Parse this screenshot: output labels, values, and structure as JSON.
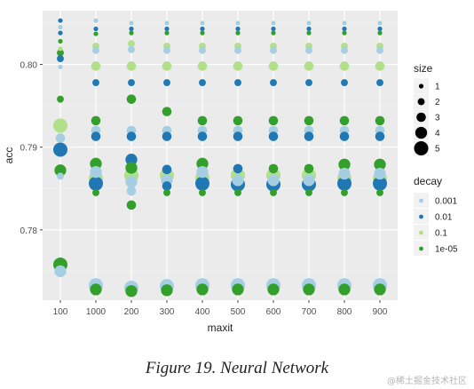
{
  "chart_data": {
    "type": "scatter",
    "xlabel": "maxit",
    "ylabel": "acc",
    "categories": [
      "100",
      "1000",
      "200",
      "300",
      "400",
      "500",
      "600",
      "700",
      "800",
      "900"
    ],
    "ylim": [
      0.7715,
      0.8065
    ],
    "yticks": [
      0.78,
      0.79,
      0.8
    ],
    "ytick_labels": [
      "0.78",
      "0.79",
      "0.80"
    ],
    "grid": true,
    "legend_size": {
      "title": "size",
      "entries": [
        {
          "label": "1",
          "value": 1
        },
        {
          "label": "2",
          "value": 2
        },
        {
          "label": "3",
          "value": 3
        },
        {
          "label": "4",
          "value": 4
        },
        {
          "label": "5",
          "value": 5
        }
      ]
    },
    "legend_color": {
      "title": "decay",
      "entries": [
        {
          "label": "0.001",
          "color": "#a6cee3"
        },
        {
          "label": "0.01",
          "color": "#1f78b4"
        },
        {
          "label": "0.1",
          "color": "#b2df8a"
        },
        {
          "label": "1e-05",
          "color": "#33a02c"
        }
      ]
    },
    "points": [
      {
        "x": "100",
        "y": 0.8053,
        "decay": "0.01",
        "size": 1
      },
      {
        "x": "100",
        "y": 0.8045,
        "decay": "0.001",
        "size": 1
      },
      {
        "x": "100",
        "y": 0.8038,
        "decay": "0.01",
        "size": 1
      },
      {
        "x": "100",
        "y": 0.8028,
        "decay": "1e-05",
        "size": 1
      },
      {
        "x": "100",
        "y": 0.8019,
        "decay": "0.1",
        "size": 1
      },
      {
        "x": "100",
        "y": 0.8014,
        "decay": "1e-05",
        "size": 2
      },
      {
        "x": "100",
        "y": 0.8007,
        "decay": "0.01",
        "size": 2
      },
      {
        "x": "100",
        "y": 0.7997,
        "decay": "0.001",
        "size": 1
      },
      {
        "x": "100",
        "y": 0.7958,
        "decay": "1e-05",
        "size": 2
      },
      {
        "x": "100",
        "y": 0.7926,
        "decay": "0.1",
        "size": 5
      },
      {
        "x": "100",
        "y": 0.7911,
        "decay": "0.001",
        "size": 3
      },
      {
        "x": "100",
        "y": 0.7897,
        "decay": "0.01",
        "size": 5
      },
      {
        "x": "100",
        "y": 0.7872,
        "decay": "1e-05",
        "size": 4
      },
      {
        "x": "100",
        "y": 0.7865,
        "decay": "0.001",
        "size": 2
      },
      {
        "x": "100",
        "y": 0.7758,
        "decay": "1e-05",
        "size": 5
      },
      {
        "x": "100",
        "y": 0.775,
        "decay": "0.001",
        "size": 4
      },
      {
        "x": "1000",
        "y": 0.8053,
        "decay": "0.001",
        "size": 1
      },
      {
        "x": "1000",
        "y": 0.8043,
        "decay": "0.01",
        "size": 1
      },
      {
        "x": "1000",
        "y": 0.8037,
        "decay": "1e-05",
        "size": 1
      },
      {
        "x": "1000",
        "y": 0.8022,
        "decay": "0.1",
        "size": 2
      },
      {
        "x": "1000",
        "y": 0.8017,
        "decay": "0.001",
        "size": 2
      },
      {
        "x": "1000",
        "y": 0.7998,
        "decay": "0.1",
        "size": 3
      },
      {
        "x": "1000",
        "y": 0.7978,
        "decay": "0.01",
        "size": 2
      },
      {
        "x": "1000",
        "y": 0.7932,
        "decay": "1e-05",
        "size": 3
      },
      {
        "x": "1000",
        "y": 0.792,
        "decay": "0.001",
        "size": 3
      },
      {
        "x": "1000",
        "y": 0.7913,
        "decay": "0.01",
        "size": 3
      },
      {
        "x": "1000",
        "y": 0.788,
        "decay": "1e-05",
        "size": 4
      },
      {
        "x": "1000",
        "y": 0.787,
        "decay": "0.001",
        "size": 4
      },
      {
        "x": "1000",
        "y": 0.7862,
        "decay": "0.1",
        "size": 5
      },
      {
        "x": "1000",
        "y": 0.7856,
        "decay": "0.01",
        "size": 5
      },
      {
        "x": "1000",
        "y": 0.7845,
        "decay": "1e-05",
        "size": 2
      },
      {
        "x": "1000",
        "y": 0.7733,
        "decay": "0.001",
        "size": 5
      },
      {
        "x": "1000",
        "y": 0.7728,
        "decay": "1e-05",
        "size": 4
      },
      {
        "x": "200",
        "y": 0.805,
        "decay": "0.001",
        "size": 1
      },
      {
        "x": "200",
        "y": 0.8043,
        "decay": "0.01",
        "size": 1
      },
      {
        "x": "200",
        "y": 0.8038,
        "decay": "1e-05",
        "size": 1
      },
      {
        "x": "200",
        "y": 0.8025,
        "decay": "0.1",
        "size": 2
      },
      {
        "x": "200",
        "y": 0.8018,
        "decay": "0.001",
        "size": 2
      },
      {
        "x": "200",
        "y": 0.7998,
        "decay": "0.1",
        "size": 3
      },
      {
        "x": "200",
        "y": 0.7978,
        "decay": "0.01",
        "size": 2
      },
      {
        "x": "200",
        "y": 0.7958,
        "decay": "1e-05",
        "size": 3
      },
      {
        "x": "200",
        "y": 0.792,
        "decay": "0.001",
        "size": 3
      },
      {
        "x": "200",
        "y": 0.7913,
        "decay": "0.01",
        "size": 3
      },
      {
        "x": "200",
        "y": 0.7885,
        "decay": "0.01",
        "size": 4
      },
      {
        "x": "200",
        "y": 0.7875,
        "decay": "1e-05",
        "size": 4
      },
      {
        "x": "200",
        "y": 0.7866,
        "decay": "0.1",
        "size": 5
      },
      {
        "x": "200",
        "y": 0.7858,
        "decay": "0.001",
        "size": 4
      },
      {
        "x": "200",
        "y": 0.7847,
        "decay": "0.001",
        "size": 3
      },
      {
        "x": "200",
        "y": 0.783,
        "decay": "1e-05",
        "size": 3
      },
      {
        "x": "200",
        "y": 0.773,
        "decay": "0.001",
        "size": 5
      },
      {
        "x": "200",
        "y": 0.7726,
        "decay": "1e-05",
        "size": 4
      },
      {
        "x": "300",
        "y": 0.805,
        "decay": "0.001",
        "size": 1
      },
      {
        "x": "300",
        "y": 0.8043,
        "decay": "0.01",
        "size": 1
      },
      {
        "x": "300",
        "y": 0.8038,
        "decay": "1e-05",
        "size": 1
      },
      {
        "x": "300",
        "y": 0.8022,
        "decay": "0.1",
        "size": 2
      },
      {
        "x": "300",
        "y": 0.8017,
        "decay": "0.001",
        "size": 2
      },
      {
        "x": "300",
        "y": 0.7998,
        "decay": "0.1",
        "size": 3
      },
      {
        "x": "300",
        "y": 0.7978,
        "decay": "0.01",
        "size": 2
      },
      {
        "x": "300",
        "y": 0.7943,
        "decay": "1e-05",
        "size": 3
      },
      {
        "x": "300",
        "y": 0.792,
        "decay": "0.001",
        "size": 3
      },
      {
        "x": "300",
        "y": 0.7913,
        "decay": "0.01",
        "size": 3
      },
      {
        "x": "300",
        "y": 0.7873,
        "decay": "0.01",
        "size": 3
      },
      {
        "x": "300",
        "y": 0.7866,
        "decay": "0.1",
        "size": 5
      },
      {
        "x": "300",
        "y": 0.786,
        "decay": "0.001",
        "size": 4
      },
      {
        "x": "300",
        "y": 0.7853,
        "decay": "0.01",
        "size": 3
      },
      {
        "x": "300",
        "y": 0.7845,
        "decay": "1e-05",
        "size": 2
      },
      {
        "x": "300",
        "y": 0.7732,
        "decay": "0.001",
        "size": 5
      },
      {
        "x": "300",
        "y": 0.7727,
        "decay": "1e-05",
        "size": 4
      },
      {
        "x": "400",
        "y": 0.805,
        "decay": "0.001",
        "size": 1
      },
      {
        "x": "400",
        "y": 0.8043,
        "decay": "0.01",
        "size": 1
      },
      {
        "x": "400",
        "y": 0.8038,
        "decay": "1e-05",
        "size": 1
      },
      {
        "x": "400",
        "y": 0.8022,
        "decay": "0.1",
        "size": 2
      },
      {
        "x": "400",
        "y": 0.8017,
        "decay": "0.001",
        "size": 2
      },
      {
        "x": "400",
        "y": 0.7998,
        "decay": "0.1",
        "size": 3
      },
      {
        "x": "400",
        "y": 0.7978,
        "decay": "0.01",
        "size": 2
      },
      {
        "x": "400",
        "y": 0.7932,
        "decay": "1e-05",
        "size": 3
      },
      {
        "x": "400",
        "y": 0.792,
        "decay": "0.001",
        "size": 3
      },
      {
        "x": "400",
        "y": 0.7913,
        "decay": "0.01",
        "size": 3
      },
      {
        "x": "400",
        "y": 0.788,
        "decay": "1e-05",
        "size": 4
      },
      {
        "x": "400",
        "y": 0.787,
        "decay": "0.001",
        "size": 4
      },
      {
        "x": "400",
        "y": 0.7863,
        "decay": "0.1",
        "size": 5
      },
      {
        "x": "400",
        "y": 0.7856,
        "decay": "0.01",
        "size": 5
      },
      {
        "x": "400",
        "y": 0.7845,
        "decay": "1e-05",
        "size": 2
      },
      {
        "x": "400",
        "y": 0.7733,
        "decay": "0.001",
        "size": 5
      },
      {
        "x": "400",
        "y": 0.7728,
        "decay": "1e-05",
        "size": 4
      },
      {
        "x": "500",
        "y": 0.805,
        "decay": "0.001",
        "size": 1
      },
      {
        "x": "500",
        "y": 0.8043,
        "decay": "0.01",
        "size": 1
      },
      {
        "x": "500",
        "y": 0.8038,
        "decay": "1e-05",
        "size": 1
      },
      {
        "x": "500",
        "y": 0.8022,
        "decay": "0.1",
        "size": 2
      },
      {
        "x": "500",
        "y": 0.8017,
        "decay": "0.001",
        "size": 2
      },
      {
        "x": "500",
        "y": 0.7998,
        "decay": "0.1",
        "size": 3
      },
      {
        "x": "500",
        "y": 0.7978,
        "decay": "0.01",
        "size": 2
      },
      {
        "x": "500",
        "y": 0.7932,
        "decay": "1e-05",
        "size": 3
      },
      {
        "x": "500",
        "y": 0.792,
        "decay": "0.001",
        "size": 3
      },
      {
        "x": "500",
        "y": 0.7913,
        "decay": "0.01",
        "size": 3
      },
      {
        "x": "500",
        "y": 0.7874,
        "decay": "0.01",
        "size": 3
      },
      {
        "x": "500",
        "y": 0.7866,
        "decay": "0.1",
        "size": 5
      },
      {
        "x": "500",
        "y": 0.786,
        "decay": "0.001",
        "size": 4
      },
      {
        "x": "500",
        "y": 0.7855,
        "decay": "0.01",
        "size": 5
      },
      {
        "x": "500",
        "y": 0.7845,
        "decay": "1e-05",
        "size": 2
      },
      {
        "x": "500",
        "y": 0.7733,
        "decay": "0.001",
        "size": 5
      },
      {
        "x": "500",
        "y": 0.7728,
        "decay": "1e-05",
        "size": 4
      },
      {
        "x": "600",
        "y": 0.805,
        "decay": "0.001",
        "size": 1
      },
      {
        "x": "600",
        "y": 0.8043,
        "decay": "0.01",
        "size": 1
      },
      {
        "x": "600",
        "y": 0.8038,
        "decay": "1e-05",
        "size": 1
      },
      {
        "x": "600",
        "y": 0.8022,
        "decay": "0.1",
        "size": 2
      },
      {
        "x": "600",
        "y": 0.8017,
        "decay": "0.001",
        "size": 2
      },
      {
        "x": "600",
        "y": 0.7998,
        "decay": "0.1",
        "size": 3
      },
      {
        "x": "600",
        "y": 0.7978,
        "decay": "0.01",
        "size": 2
      },
      {
        "x": "600",
        "y": 0.7932,
        "decay": "1e-05",
        "size": 3
      },
      {
        "x": "600",
        "y": 0.792,
        "decay": "0.001",
        "size": 3
      },
      {
        "x": "600",
        "y": 0.7913,
        "decay": "0.01",
        "size": 3
      },
      {
        "x": "600",
        "y": 0.7874,
        "decay": "1e-05",
        "size": 3
      },
      {
        "x": "600",
        "y": 0.7866,
        "decay": "0.1",
        "size": 5
      },
      {
        "x": "600",
        "y": 0.786,
        "decay": "0.001",
        "size": 4
      },
      {
        "x": "600",
        "y": 0.7855,
        "decay": "0.01",
        "size": 5
      },
      {
        "x": "600",
        "y": 0.7845,
        "decay": "1e-05",
        "size": 2
      },
      {
        "x": "600",
        "y": 0.7733,
        "decay": "0.001",
        "size": 5
      },
      {
        "x": "600",
        "y": 0.7728,
        "decay": "1e-05",
        "size": 4
      },
      {
        "x": "700",
        "y": 0.805,
        "decay": "0.001",
        "size": 1
      },
      {
        "x": "700",
        "y": 0.8043,
        "decay": "0.01",
        "size": 1
      },
      {
        "x": "700",
        "y": 0.8038,
        "decay": "1e-05",
        "size": 1
      },
      {
        "x": "700",
        "y": 0.8022,
        "decay": "0.1",
        "size": 2
      },
      {
        "x": "700",
        "y": 0.8017,
        "decay": "0.001",
        "size": 2
      },
      {
        "x": "700",
        "y": 0.7998,
        "decay": "0.1",
        "size": 3
      },
      {
        "x": "700",
        "y": 0.7978,
        "decay": "0.01",
        "size": 2
      },
      {
        "x": "700",
        "y": 0.7932,
        "decay": "1e-05",
        "size": 3
      },
      {
        "x": "700",
        "y": 0.792,
        "decay": "0.001",
        "size": 3
      },
      {
        "x": "700",
        "y": 0.7913,
        "decay": "0.01",
        "size": 3
      },
      {
        "x": "700",
        "y": 0.7874,
        "decay": "1e-05",
        "size": 3
      },
      {
        "x": "700",
        "y": 0.7866,
        "decay": "0.1",
        "size": 5
      },
      {
        "x": "700",
        "y": 0.786,
        "decay": "0.001",
        "size": 4
      },
      {
        "x": "700",
        "y": 0.7855,
        "decay": "0.01",
        "size": 5
      },
      {
        "x": "700",
        "y": 0.7845,
        "decay": "1e-05",
        "size": 2
      },
      {
        "x": "700",
        "y": 0.7733,
        "decay": "0.001",
        "size": 5
      },
      {
        "x": "700",
        "y": 0.7728,
        "decay": "1e-05",
        "size": 4
      },
      {
        "x": "800",
        "y": 0.805,
        "decay": "0.001",
        "size": 1
      },
      {
        "x": "800",
        "y": 0.8043,
        "decay": "0.01",
        "size": 1
      },
      {
        "x": "800",
        "y": 0.8038,
        "decay": "1e-05",
        "size": 1
      },
      {
        "x": "800",
        "y": 0.8022,
        "decay": "0.1",
        "size": 2
      },
      {
        "x": "800",
        "y": 0.8017,
        "decay": "0.001",
        "size": 2
      },
      {
        "x": "800",
        "y": 0.7998,
        "decay": "0.1",
        "size": 3
      },
      {
        "x": "800",
        "y": 0.7978,
        "decay": "0.01",
        "size": 2
      },
      {
        "x": "800",
        "y": 0.7932,
        "decay": "1e-05",
        "size": 3
      },
      {
        "x": "800",
        "y": 0.792,
        "decay": "0.001",
        "size": 3
      },
      {
        "x": "800",
        "y": 0.7913,
        "decay": "0.01",
        "size": 3
      },
      {
        "x": "800",
        "y": 0.7879,
        "decay": "1e-05",
        "size": 4
      },
      {
        "x": "800",
        "y": 0.7868,
        "decay": "0.001",
        "size": 4
      },
      {
        "x": "800",
        "y": 0.7862,
        "decay": "0.1",
        "size": 5
      },
      {
        "x": "800",
        "y": 0.7856,
        "decay": "0.01",
        "size": 5
      },
      {
        "x": "800",
        "y": 0.7845,
        "decay": "1e-05",
        "size": 2
      },
      {
        "x": "800",
        "y": 0.7733,
        "decay": "0.001",
        "size": 5
      },
      {
        "x": "800",
        "y": 0.7728,
        "decay": "1e-05",
        "size": 4
      },
      {
        "x": "900",
        "y": 0.805,
        "decay": "0.001",
        "size": 1
      },
      {
        "x": "900",
        "y": 0.8043,
        "decay": "0.01",
        "size": 1
      },
      {
        "x": "900",
        "y": 0.8038,
        "decay": "1e-05",
        "size": 1
      },
      {
        "x": "900",
        "y": 0.8022,
        "decay": "0.1",
        "size": 2
      },
      {
        "x": "900",
        "y": 0.8017,
        "decay": "0.001",
        "size": 2
      },
      {
        "x": "900",
        "y": 0.7998,
        "decay": "0.1",
        "size": 3
      },
      {
        "x": "900",
        "y": 0.7978,
        "decay": "0.01",
        "size": 2
      },
      {
        "x": "900",
        "y": 0.7932,
        "decay": "1e-05",
        "size": 3
      },
      {
        "x": "900",
        "y": 0.792,
        "decay": "0.001",
        "size": 3
      },
      {
        "x": "900",
        "y": 0.7913,
        "decay": "0.01",
        "size": 3
      },
      {
        "x": "900",
        "y": 0.7879,
        "decay": "1e-05",
        "size": 4
      },
      {
        "x": "900",
        "y": 0.7868,
        "decay": "0.001",
        "size": 4
      },
      {
        "x": "900",
        "y": 0.7862,
        "decay": "0.1",
        "size": 5
      },
      {
        "x": "900",
        "y": 0.7856,
        "decay": "0.01",
        "size": 5
      },
      {
        "x": "900",
        "y": 0.7845,
        "decay": "1e-05",
        "size": 2
      },
      {
        "x": "900",
        "y": 0.7733,
        "decay": "0.001",
        "size": 5
      },
      {
        "x": "900",
        "y": 0.7728,
        "decay": "1e-05",
        "size": 4
      }
    ]
  },
  "caption": "Figure 19. Neural Network",
  "watermark": "@稀土掘金技术社区"
}
